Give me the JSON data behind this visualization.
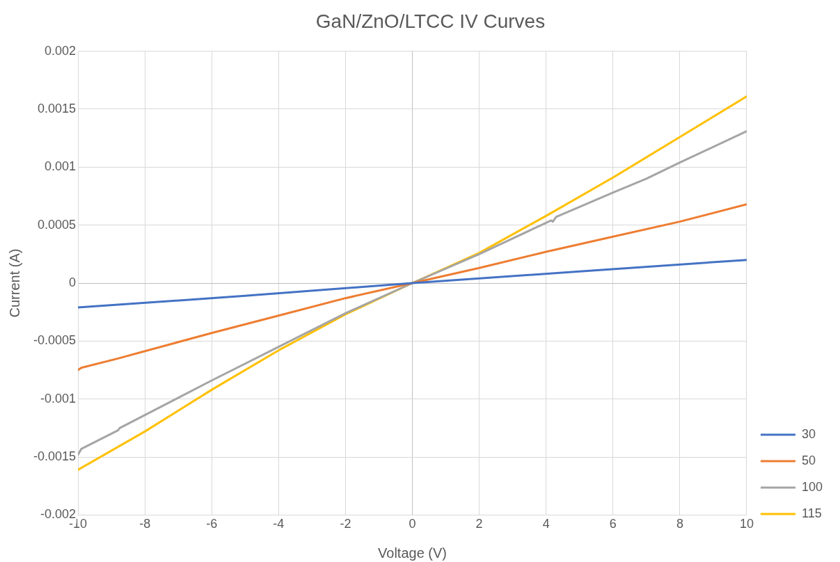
{
  "chart_data": {
    "type": "line",
    "title": "GaN/ZnO/LTCC IV Curves",
    "xlabel": "Voltage (V)",
    "ylabel": "Current (A)",
    "xlim": [
      -10,
      10
    ],
    "xticks": [
      -10,
      -8,
      -6,
      -4,
      -2,
      0,
      2,
      4,
      6,
      8,
      10
    ],
    "ylim": [
      -0.002,
      0.002
    ],
    "yticks": [
      -0.002,
      -0.0015,
      -0.001,
      -0.0005,
      0,
      0.0005,
      0.001,
      0.0015,
      0.002
    ],
    "grid": true,
    "legend": "bottom right",
    "marker": "none",
    "line_style": "solid",
    "series": [
      {
        "name": "30",
        "color": "#4472c4",
        "x": [
          -10,
          -5,
          0,
          5,
          10
        ],
        "values": [
          -0.00021,
          -0.00011,
          0,
          0.0001,
          0.0002
        ]
      },
      {
        "name": "50",
        "color": "#ed7d31",
        "x": [
          -10,
          -9.9,
          -8.8,
          -6,
          -4,
          -2,
          0,
          2,
          4,
          6,
          8,
          10
        ],
        "values": [
          -0.00075,
          -0.00073,
          -0.00065,
          -0.00043,
          -0.00028,
          -0.00013,
          0,
          0.00013,
          0.00027,
          0.0004,
          0.00053,
          0.00068
        ]
      },
      {
        "name": "100",
        "color": "#a5a5a5",
        "x": [
          -10,
          -9.9,
          -8.8,
          -8.75,
          -6,
          -4,
          -2,
          0,
          2,
          4,
          4.15,
          4.2,
          4.3,
          6,
          7,
          8,
          10
        ],
        "values": [
          -0.00148,
          -0.00143,
          -0.00127,
          -0.00125,
          -0.00084,
          -0.00055,
          -0.00026,
          0,
          0.00025,
          0.00052,
          0.00054,
          0.00053,
          0.00057,
          0.00078,
          0.0009,
          0.00104,
          0.00131
        ]
      },
      {
        "name": "115",
        "color": "#ffc000",
        "x": [
          -10,
          -8,
          -6,
          -4,
          -2,
          0,
          2,
          4,
          6,
          8,
          10
        ],
        "values": [
          -0.00161,
          -0.00128,
          -0.00092,
          -0.00058,
          -0.00027,
          0,
          0.00026,
          0.00058,
          0.00091,
          0.00126,
          0.00161
        ]
      }
    ]
  }
}
